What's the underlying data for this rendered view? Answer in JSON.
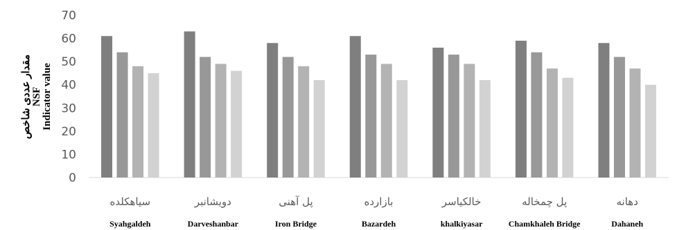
{
  "chart_data": {
    "type": "bar",
    "ylim": [
      0,
      70
    ],
    "yticks": [
      0,
      10,
      20,
      30,
      40,
      50,
      60,
      70
    ],
    "ylabel_lines": [
      "مقدار عددی شاخص",
      "NSF",
      "Indicator value"
    ],
    "categories_fa": [
      "سیاهکلده",
      "دویشانبر",
      "پل آهنی",
      "بازارده",
      "خالکیاسر",
      "پل چمخاله",
      "دهانه"
    ],
    "categories_en": [
      "Syahgaldeh",
      "Darveshanbar",
      "Iron Bridge",
      "Bazardeh",
      "khalkiyasar",
      "Chamkhaleh Bridge",
      "Dahaneh"
    ],
    "series": [
      {
        "values": [
          61,
          63,
          58,
          61,
          56,
          59,
          58
        ],
        "color": "#7f7f7f"
      },
      {
        "values": [
          54,
          52,
          52,
          53,
          53,
          54,
          52
        ],
        "color": "#989898"
      },
      {
        "values": [
          48,
          49,
          48,
          49,
          49,
          47,
          47
        ],
        "color": "#b3b3b3"
      },
      {
        "values": [
          45,
          46,
          42,
          42,
          42,
          43,
          40
        ],
        "color": "#d2d2d2"
      }
    ],
    "grid": false,
    "legend": "none"
  }
}
